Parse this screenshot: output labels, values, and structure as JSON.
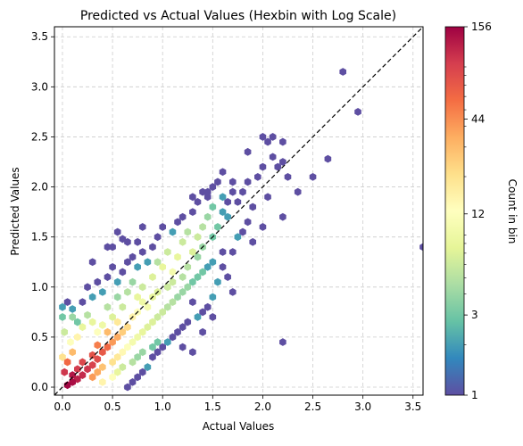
{
  "chart_data": {
    "type": "hexbin",
    "title": "Predicted vs Actual Values (Hexbin with Log Scale)",
    "xlabel": "Actual Values",
    "ylabel": "Predicted Values",
    "xlim": [
      -0.08,
      3.6
    ],
    "ylim": [
      -0.08,
      3.6
    ],
    "xticks": [
      "0.0",
      "0.5",
      "1.0",
      "1.5",
      "2.0",
      "2.5",
      "3.0",
      "3.5"
    ],
    "yticks": [
      "0.0",
      "0.5",
      "1.0",
      "1.5",
      "2.0",
      "2.5",
      "3.0",
      "3.5"
    ],
    "grid": true,
    "reference_line": {
      "label": "y = x",
      "style": "dashed",
      "color": "#000000"
    },
    "colorbar": {
      "label": "Count in bin",
      "scale": "log",
      "min": 1,
      "max": 156,
      "ticks": [
        "1",
        "3",
        "12",
        "44",
        "156"
      ],
      "colormap": "Spectral_r"
    },
    "bins": [
      [
        0.05,
        0.02,
        150
      ],
      [
        0.1,
        0.05,
        140
      ],
      [
        0.15,
        0.08,
        120
      ],
      [
        0.1,
        0.12,
        130
      ],
      [
        0.2,
        0.12,
        110
      ],
      [
        0.15,
        0.18,
        95
      ],
      [
        0.25,
        0.18,
        100
      ],
      [
        0.3,
        0.22,
        90
      ],
      [
        0.2,
        0.25,
        85
      ],
      [
        0.35,
        0.28,
        80
      ],
      [
        0.3,
        0.32,
        75
      ],
      [
        0.4,
        0.35,
        70
      ],
      [
        0.45,
        0.4,
        60
      ],
      [
        0.35,
        0.42,
        50
      ],
      [
        0.5,
        0.45,
        40
      ],
      [
        0.55,
        0.5,
        35
      ],
      [
        0.45,
        0.55,
        30
      ],
      [
        0.6,
        0.55,
        25
      ],
      [
        0.65,
        0.6,
        22
      ],
      [
        0.55,
        0.65,
        18
      ],
      [
        0.7,
        0.7,
        15
      ],
      [
        0.75,
        0.75,
        12
      ],
      [
        0.85,
        0.8,
        10
      ],
      [
        0.8,
        0.85,
        9
      ],
      [
        0.9,
        0.9,
        8
      ],
      [
        0.95,
        0.95,
        7
      ],
      [
        1.05,
        1.0,
        6
      ],
      [
        1.1,
        1.05,
        6
      ],
      [
        1.2,
        1.1,
        5
      ],
      [
        1.25,
        1.2,
        5
      ],
      [
        1.35,
        1.3,
        4
      ],
      [
        1.4,
        1.4,
        4
      ],
      [
        1.5,
        1.5,
        3
      ],
      [
        1.55,
        1.6,
        3
      ],
      [
        1.65,
        1.7,
        2
      ],
      [
        0.02,
        0.15,
        100
      ],
      [
        0.05,
        0.25,
        60
      ],
      [
        0.0,
        0.3,
        20
      ],
      [
        0.1,
        0.35,
        30
      ],
      [
        0.08,
        0.45,
        12
      ],
      [
        0.02,
        0.55,
        6
      ],
      [
        0.15,
        0.5,
        15
      ],
      [
        0.2,
        0.6,
        8
      ],
      [
        0.1,
        0.7,
        4
      ],
      [
        0.25,
        0.72,
        5
      ],
      [
        0.3,
        0.65,
        8
      ],
      [
        0.35,
        0.55,
        12
      ],
      [
        0.4,
        0.62,
        9
      ],
      [
        0.5,
        0.7,
        7
      ],
      [
        0.45,
        0.8,
        5
      ],
      [
        0.6,
        0.8,
        6
      ],
      [
        0.55,
        0.9,
        4
      ],
      [
        0.65,
        0.95,
        5
      ],
      [
        0.75,
        0.9,
        8
      ],
      [
        0.7,
        1.05,
        4
      ],
      [
        0.8,
        1.0,
        6
      ],
      [
        0.9,
        1.1,
        7
      ],
      [
        0.95,
        1.25,
        5
      ],
      [
        1.0,
        1.2,
        8
      ],
      [
        1.05,
        1.35,
        6
      ],
      [
        1.1,
        1.15,
        10
      ],
      [
        1.15,
        1.3,
        8
      ],
      [
        1.2,
        1.45,
        6
      ],
      [
        1.25,
        1.55,
        5
      ],
      [
        1.3,
        1.35,
        7
      ],
      [
        1.35,
        1.5,
        6
      ],
      [
        1.4,
        1.6,
        5
      ],
      [
        1.45,
        1.7,
        4
      ],
      [
        1.5,
        1.8,
        3
      ],
      [
        1.6,
        1.9,
        2
      ],
      [
        0.3,
        0.1,
        40
      ],
      [
        0.35,
        0.15,
        35
      ],
      [
        0.4,
        0.2,
        28
      ],
      [
        0.5,
        0.25,
        20
      ],
      [
        0.55,
        0.3,
        18
      ],
      [
        0.6,
        0.35,
        14
      ],
      [
        0.65,
        0.4,
        12
      ],
      [
        0.7,
        0.45,
        10
      ],
      [
        0.75,
        0.5,
        9
      ],
      [
        0.8,
        0.55,
        8
      ],
      [
        0.85,
        0.6,
        7
      ],
      [
        0.9,
        0.65,
        7
      ],
      [
        0.95,
        0.7,
        6
      ],
      [
        1.0,
        0.75,
        6
      ],
      [
        1.05,
        0.8,
        5
      ],
      [
        1.1,
        0.85,
        5
      ],
      [
        1.15,
        0.9,
        4
      ],
      [
        1.2,
        0.95,
        4
      ],
      [
        1.25,
        1.0,
        4
      ],
      [
        1.3,
        1.05,
        3
      ],
      [
        1.35,
        1.1,
        3
      ],
      [
        1.4,
        1.15,
        3
      ],
      [
        1.45,
        1.2,
        2
      ],
      [
        1.5,
        1.25,
        2
      ],
      [
        0.4,
        0.05,
        15
      ],
      [
        0.5,
        0.1,
        12
      ],
      [
        0.55,
        0.15,
        8
      ],
      [
        0.6,
        0.2,
        6
      ],
      [
        0.7,
        0.25,
        5
      ],
      [
        0.75,
        0.3,
        4
      ],
      [
        0.8,
        0.35,
        4
      ],
      [
        0.9,
        0.4,
        3
      ],
      [
        0.95,
        0.45,
        3
      ],
      [
        0.0,
        0.8,
        2
      ],
      [
        0.0,
        0.7,
        3
      ],
      [
        0.05,
        0.85,
        1
      ],
      [
        0.1,
        0.78,
        2
      ],
      [
        0.15,
        0.65,
        3
      ],
      [
        0.2,
        0.85,
        1
      ],
      [
        0.25,
        1.0,
        1
      ],
      [
        0.3,
        0.9,
        2
      ],
      [
        0.35,
        1.05,
        1
      ],
      [
        0.4,
        0.95,
        2
      ],
      [
        0.45,
        1.1,
        1
      ],
      [
        0.5,
        1.2,
        1
      ],
      [
        0.55,
        1.05,
        2
      ],
      [
        0.6,
        1.15,
        1
      ],
      [
        0.65,
        1.25,
        1
      ],
      [
        0.7,
        1.3,
        1
      ],
      [
        0.75,
        1.2,
        2
      ],
      [
        0.8,
        1.35,
        1
      ],
      [
        0.85,
        1.25,
        2
      ],
      [
        0.9,
        1.4,
        1
      ],
      [
        0.45,
        1.4,
        1
      ],
      [
        0.55,
        1.55,
        1
      ],
      [
        0.6,
        1.48,
        1
      ],
      [
        0.75,
        1.45,
        1
      ],
      [
        0.8,
        1.6,
        1
      ],
      [
        0.95,
        1.5,
        1
      ],
      [
        1.0,
        1.6,
        1
      ],
      [
        1.1,
        1.55,
        2
      ],
      [
        1.15,
        1.65,
        1
      ],
      [
        1.2,
        1.7,
        1
      ],
      [
        1.3,
        1.75,
        1
      ],
      [
        1.35,
        1.85,
        1
      ],
      [
        1.4,
        1.95,
        1
      ],
      [
        1.45,
        1.9,
        1
      ],
      [
        1.5,
        2.0,
        1
      ],
      [
        1.6,
        1.75,
        2
      ],
      [
        1.65,
        1.85,
        1
      ],
      [
        1.7,
        1.95,
        1
      ],
      [
        1.75,
        1.85,
        1
      ],
      [
        1.8,
        1.95,
        1
      ],
      [
        1.85,
        2.05,
        1
      ],
      [
        1.9,
        1.8,
        1
      ],
      [
        1.95,
        2.1,
        1
      ],
      [
        2.0,
        2.2,
        1
      ],
      [
        2.05,
        1.9,
        1
      ],
      [
        2.1,
        2.3,
        1
      ],
      [
        2.15,
        2.2,
        1
      ],
      [
        2.2,
        2.25,
        1
      ],
      [
        2.25,
        2.1,
        1
      ],
      [
        2.35,
        1.95,
        1
      ],
      [
        2.5,
        2.1,
        1
      ],
      [
        2.65,
        2.28,
        1
      ],
      [
        2.05,
        2.45,
        1
      ],
      [
        2.1,
        2.5,
        1
      ],
      [
        2.2,
        2.45,
        1
      ],
      [
        1.85,
        2.35,
        1
      ],
      [
        2.0,
        2.5,
        1
      ],
      [
        2.8,
        3.15,
        1
      ],
      [
        2.95,
        2.75,
        1
      ],
      [
        3.6,
        1.4,
        1
      ],
      [
        1.75,
        1.5,
        2
      ],
      [
        1.8,
        1.55,
        1
      ],
      [
        1.9,
        1.45,
        1
      ],
      [
        2.0,
        1.6,
        1
      ],
      [
        1.7,
        1.35,
        1
      ],
      [
        1.85,
        1.65,
        1
      ],
      [
        2.2,
        1.7,
        1
      ],
      [
        1.6,
        1.2,
        1
      ],
      [
        1.55,
        1.05,
        2
      ],
      [
        1.65,
        1.1,
        1
      ],
      [
        1.5,
        0.9,
        2
      ],
      [
        1.45,
        0.8,
        1
      ],
      [
        1.4,
        0.75,
        1
      ],
      [
        1.35,
        0.7,
        2
      ],
      [
        1.3,
        0.85,
        1
      ],
      [
        1.25,
        0.65,
        1
      ],
      [
        1.2,
        0.6,
        1
      ],
      [
        1.15,
        0.55,
        1
      ],
      [
        1.1,
        0.5,
        1
      ],
      [
        1.05,
        0.45,
        2
      ],
      [
        1.0,
        0.4,
        1
      ],
      [
        0.95,
        0.35,
        1
      ],
      [
        0.9,
        0.3,
        1
      ],
      [
        0.85,
        0.2,
        2
      ],
      [
        0.8,
        0.15,
        1
      ],
      [
        0.75,
        0.1,
        1
      ],
      [
        0.7,
        0.05,
        1
      ],
      [
        0.65,
        0.0,
        1
      ],
      [
        1.2,
        0.4,
        1
      ],
      [
        1.3,
        0.35,
        1
      ],
      [
        1.4,
        0.55,
        1
      ],
      [
        1.5,
        0.7,
        1
      ],
      [
        1.6,
        1.35,
        1
      ],
      [
        1.7,
        0.95,
        1
      ],
      [
        2.2,
        0.45,
        1
      ],
      [
        1.45,
        1.95,
        1
      ],
      [
        1.55,
        2.05,
        1
      ],
      [
        1.6,
        2.15,
        1
      ],
      [
        1.7,
        2.05,
        1
      ],
      [
        1.3,
        1.9,
        1
      ],
      [
        0.3,
        1.25,
        1
      ],
      [
        0.5,
        1.4,
        1
      ],
      [
        0.65,
        1.45,
        1
      ]
    ]
  }
}
